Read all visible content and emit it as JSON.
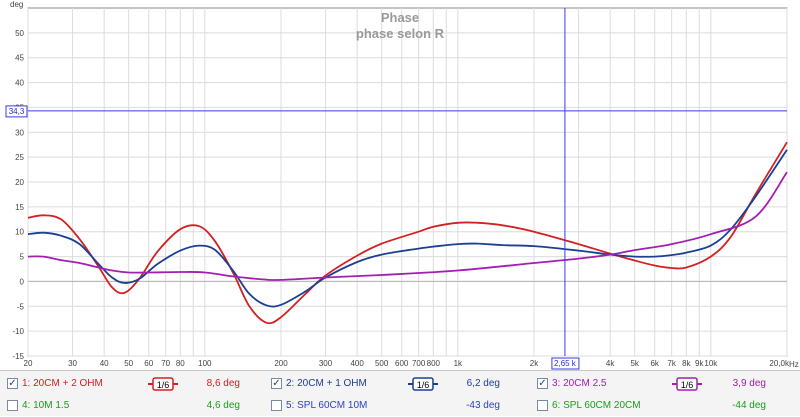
{
  "chart_data": {
    "type": "line",
    "title": "Phase",
    "subtitle": "phase selon R",
    "ylabel": "deg",
    "xunit": "Hz",
    "xscale": "log",
    "xlim": [
      20,
      20000
    ],
    "ylim": [
      -15,
      55
    ],
    "grid": true,
    "x_ticks": [
      {
        "v": 20,
        "t": "20"
      },
      {
        "v": 30,
        "t": "30"
      },
      {
        "v": 40,
        "t": "40"
      },
      {
        "v": 50,
        "t": "50"
      },
      {
        "v": 60,
        "t": "60"
      },
      {
        "v": 70,
        "t": "70"
      },
      {
        "v": 80,
        "t": "80"
      },
      {
        "v": 100,
        "t": "100"
      },
      {
        "v": 200,
        "t": "200"
      },
      {
        "v": 300,
        "t": "300"
      },
      {
        "v": 400,
        "t": "400"
      },
      {
        "v": 500,
        "t": "500"
      },
      {
        "v": 600,
        "t": "600"
      },
      {
        "v": 700,
        "t": "700"
      },
      {
        "v": 800,
        "t": "800"
      },
      {
        "v": 1000,
        "t": "1k"
      },
      {
        "v": 2000,
        "t": "2k"
      },
      {
        "v": 4000,
        "t": "4k"
      },
      {
        "v": 5000,
        "t": "5k"
      },
      {
        "v": 6000,
        "t": "6k"
      },
      {
        "v": 7000,
        "t": "7k"
      },
      {
        "v": 8000,
        "t": "8k"
      },
      {
        "v": 9000,
        "t": "9k"
      },
      {
        "v": 10000,
        "t": "10k"
      },
      {
        "v": 20000,
        "t": "20,0k"
      }
    ],
    "y_ticks": [
      -15,
      -10,
      -5,
      0,
      5,
      10,
      15,
      20,
      25,
      30,
      35,
      40,
      45,
      50
    ],
    "cursor": {
      "x": 2650,
      "x_label": "2,65 k",
      "y": 34.3,
      "y_label": "34,3"
    },
    "series": [
      {
        "name": "20CM + 2 OHM",
        "color": "#d42020",
        "points": [
          [
            20,
            12.8
          ],
          [
            23,
            13.3
          ],
          [
            27,
            12.5
          ],
          [
            32,
            8.5
          ],
          [
            38,
            3
          ],
          [
            43,
            -1.2
          ],
          [
            48,
            -2.3
          ],
          [
            55,
            0.5
          ],
          [
            65,
            6
          ],
          [
            80,
            10.5
          ],
          [
            95,
            11.1
          ],
          [
            110,
            8
          ],
          [
            130,
            1.5
          ],
          [
            150,
            -5
          ],
          [
            175,
            -8.3
          ],
          [
            200,
            -7.2
          ],
          [
            250,
            -2.5
          ],
          [
            300,
            1.2
          ],
          [
            400,
            5.2
          ],
          [
            500,
            7.6
          ],
          [
            700,
            10
          ],
          [
            800,
            11
          ],
          [
            1000,
            11.8
          ],
          [
            1200,
            11.8
          ],
          [
            1500,
            11.3
          ],
          [
            2000,
            10
          ],
          [
            3000,
            7.5
          ],
          [
            4000,
            5.6
          ],
          [
            5000,
            4.2
          ],
          [
            6000,
            3.2
          ],
          [
            7000,
            2.7
          ],
          [
            8000,
            2.8
          ],
          [
            10000,
            5
          ],
          [
            12000,
            9
          ],
          [
            15000,
            17.5
          ],
          [
            20000,
            28
          ]
        ]
      },
      {
        "name": "20CM + 1 OHM",
        "color": "#1c3f94",
        "points": [
          [
            20,
            9.5
          ],
          [
            23,
            9.8
          ],
          [
            27,
            9.2
          ],
          [
            32,
            7.5
          ],
          [
            38,
            3.5
          ],
          [
            43,
            0.8
          ],
          [
            48,
            -0.3
          ],
          [
            55,
            0.5
          ],
          [
            65,
            3.5
          ],
          [
            80,
            6.2
          ],
          [
            95,
            7.2
          ],
          [
            110,
            6.3
          ],
          [
            130,
            2
          ],
          [
            150,
            -2.5
          ],
          [
            175,
            -4.8
          ],
          [
            200,
            -4.7
          ],
          [
            250,
            -2
          ],
          [
            300,
            0.8
          ],
          [
            400,
            3.9
          ],
          [
            500,
            5.4
          ],
          [
            700,
            6.6
          ],
          [
            800,
            7
          ],
          [
            1000,
            7.5
          ],
          [
            1200,
            7.6
          ],
          [
            1500,
            7.3
          ],
          [
            2000,
            7.1
          ],
          [
            3000,
            6.2
          ],
          [
            4000,
            5.4
          ],
          [
            5000,
            5
          ],
          [
            6000,
            5
          ],
          [
            7000,
            5.3
          ],
          [
            8000,
            5.8
          ],
          [
            10000,
            7.2
          ],
          [
            12000,
            10.5
          ],
          [
            15000,
            17
          ],
          [
            20000,
            26.5
          ]
        ]
      },
      {
        "name": "20CM 2.5",
        "color": "#a020b0",
        "points": [
          [
            20,
            5
          ],
          [
            23,
            5
          ],
          [
            27,
            4.3
          ],
          [
            32,
            3.7
          ],
          [
            38,
            2.8
          ],
          [
            43,
            2.2
          ],
          [
            50,
            1.8
          ],
          [
            60,
            1.8
          ],
          [
            80,
            1.9
          ],
          [
            100,
            1.8
          ],
          [
            130,
            1
          ],
          [
            170,
            0.4
          ],
          [
            200,
            0.3
          ],
          [
            300,
            0.8
          ],
          [
            500,
            1.3
          ],
          [
            1000,
            2.2
          ],
          [
            2000,
            3.7
          ],
          [
            3000,
            4.6
          ],
          [
            4000,
            5.4
          ],
          [
            5000,
            6.3
          ],
          [
            7000,
            7.5
          ],
          [
            10000,
            9.5
          ],
          [
            15000,
            13
          ],
          [
            20000,
            22
          ]
        ]
      }
    ]
  },
  "legend": [
    [
      {
        "idx": "1",
        "name": "1: 20CM + 2 OHM",
        "checked": true,
        "smooth": "1/6",
        "value": "8,6 deg",
        "color": "#d42020"
      },
      {
        "idx": "2",
        "name": "2: 20CM + 1 OHM",
        "checked": true,
        "smooth": "1/6",
        "value": "6,2 deg",
        "color": "#1c3f94"
      },
      {
        "idx": "3",
        "name": "3: 20CM 2.5",
        "checked": true,
        "smooth": "1/6",
        "value": "3,9 deg",
        "color": "#a020b0"
      }
    ],
    [
      {
        "idx": "4",
        "name": "4: 10M 1.5",
        "checked": false,
        "smooth": "",
        "value": "4,6 deg",
        "color": "#18a018"
      },
      {
        "idx": "5",
        "name": "5: SPL 60CM 10M",
        "checked": false,
        "smooth": "",
        "value": "-43 deg",
        "color": "#2a3fc8"
      },
      {
        "idx": "6",
        "name": "6: SPL 60CM 20CM",
        "checked": false,
        "smooth": "",
        "value": "-44 deg",
        "color": "#18a018"
      }
    ]
  ]
}
